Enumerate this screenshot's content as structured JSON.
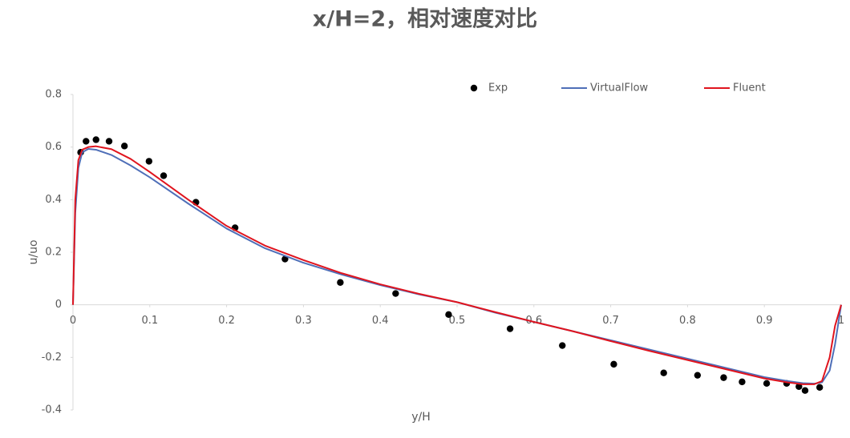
{
  "chart_data": {
    "type": "scatter",
    "title": "x/H=2，相对速度对比",
    "x_label": "y/H",
    "y_label": "u/uo",
    "xlim": [
      0,
      1
    ],
    "ylim": [
      -0.4,
      0.8
    ],
    "xticks": [
      0,
      0.1,
      0.2,
      0.3,
      0.4,
      0.5,
      0.6,
      0.7,
      0.8,
      0.9,
      1
    ],
    "yticks": [
      -0.4,
      -0.2,
      0,
      0.2,
      0.4,
      0.6,
      0.8
    ],
    "legend": "top",
    "series": [
      {
        "name": "Exp",
        "kind": "markers",
        "color": "#000000",
        "x": [
          0.01,
          0.017,
          0.03,
          0.047,
          0.067,
          0.099,
          0.118,
          0.16,
          0.211,
          0.276,
          0.348,
          0.42,
          0.489,
          0.569,
          0.637,
          0.704,
          0.769,
          0.813,
          0.847,
          0.871,
          0.903,
          0.929,
          0.945,
          0.953,
          0.972
        ],
        "values": [
          0.58,
          0.622,
          0.628,
          0.622,
          0.604,
          0.546,
          0.491,
          0.39,
          0.293,
          0.174,
          0.085,
          0.043,
          -0.037,
          -0.091,
          -0.155,
          -0.226,
          -0.259,
          -0.268,
          -0.277,
          -0.293,
          -0.299,
          -0.299,
          -0.311,
          -0.326,
          -0.314
        ]
      },
      {
        "name": "VirtualFlow",
        "kind": "line",
        "color": "#4f6fb8",
        "x": [
          0,
          0.003,
          0.007,
          0.012,
          0.02,
          0.03,
          0.05,
          0.075,
          0.1,
          0.15,
          0.2,
          0.25,
          0.3,
          0.35,
          0.4,
          0.45,
          0.5,
          0.55,
          0.6,
          0.65,
          0.7,
          0.75,
          0.8,
          0.85,
          0.9,
          0.93,
          0.95,
          0.965,
          0.975,
          0.985,
          0.992,
          1
        ],
        "values": [
          0,
          0.35,
          0.52,
          0.58,
          0.593,
          0.59,
          0.57,
          0.53,
          0.485,
          0.385,
          0.29,
          0.215,
          0.16,
          0.115,
          0.075,
          0.04,
          0.01,
          -0.03,
          -0.065,
          -0.1,
          -0.135,
          -0.17,
          -0.205,
          -0.24,
          -0.275,
          -0.29,
          -0.298,
          -0.3,
          -0.295,
          -0.25,
          -0.15,
          0
        ]
      },
      {
        "name": "Fluent",
        "kind": "line",
        "color": "#e0141e",
        "x": [
          0,
          0.003,
          0.007,
          0.012,
          0.02,
          0.03,
          0.05,
          0.075,
          0.1,
          0.15,
          0.2,
          0.25,
          0.3,
          0.35,
          0.4,
          0.45,
          0.5,
          0.55,
          0.6,
          0.65,
          0.7,
          0.75,
          0.8,
          0.85,
          0.9,
          0.93,
          0.95,
          0.965,
          0.975,
          0.985,
          0.992,
          1
        ],
        "values": [
          0,
          0.4,
          0.55,
          0.59,
          0.6,
          0.603,
          0.592,
          0.555,
          0.505,
          0.4,
          0.3,
          0.225,
          0.17,
          0.12,
          0.078,
          0.042,
          0.01,
          -0.028,
          -0.065,
          -0.1,
          -0.138,
          -0.175,
          -0.21,
          -0.245,
          -0.28,
          -0.295,
          -0.302,
          -0.302,
          -0.29,
          -0.2,
          -0.08,
          0
        ]
      }
    ]
  }
}
